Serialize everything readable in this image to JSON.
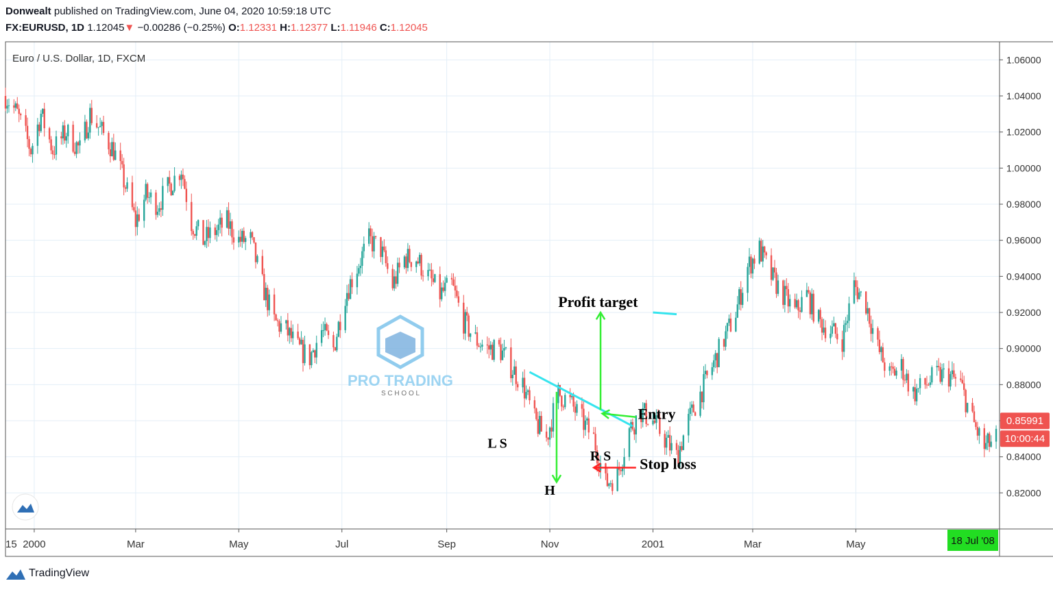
{
  "header": {
    "author": "Donwealt",
    "published_text": " published on TradingView.com, June 04, 2020 10:59:18 UTC",
    "symbol": "FX:EURUSD, 1D",
    "last": "1.12045",
    "change_arrow": "▼",
    "change": "−0.00286 (−0.25%)",
    "o_label": "O:",
    "o_value": "1.12331",
    "h_label": "H:",
    "h_value": "1.12377",
    "l_label": "L:",
    "l_value": "1.11946",
    "c_label": "C:",
    "c_value": "1.12045"
  },
  "footer": {
    "brand": "TradingView"
  },
  "watermark": {
    "line1": "PRO TRADING",
    "line2": "S C H O O L"
  },
  "colors": {
    "up": "#26a69a",
    "down": "#ef5350",
    "neckline": "#35e4ee",
    "green_annotation": "#33ee33",
    "red_annotation": "#ff2222",
    "price_label_bg": "#ef5350",
    "date_label_bg": "#22dd22",
    "grid": "#e3eef7"
  },
  "chart_data": {
    "type": "candlestick",
    "title": "Euro / U.S. Dollar, 1D, FXCM",
    "ylim": [
      0.8,
      1.07
    ],
    "yticks": [
      "1.06000",
      "1.04000",
      "1.02000",
      "1.00000",
      "0.98000",
      "0.96000",
      "0.94000",
      "0.92000",
      "0.90000",
      "0.88000",
      "0.86000",
      "0.84000",
      "0.82000"
    ],
    "ytick_values": [
      1.06,
      1.04,
      1.02,
      1.0,
      0.98,
      0.96,
      0.94,
      0.92,
      0.9,
      0.88,
      0.86,
      0.84,
      0.82
    ],
    "xlim": [
      "1999-12-15",
      "2001-07-25"
    ],
    "xticks": [
      {
        "label": "15",
        "date": "1999-12-15"
      },
      {
        "label": "2000",
        "date": "2000-01-01"
      },
      {
        "label": "Mar",
        "date": "2000-03-01"
      },
      {
        "label": "May",
        "date": "2000-05-01"
      },
      {
        "label": "Jul",
        "date": "2000-07-01"
      },
      {
        "label": "Sep",
        "date": "2000-09-01"
      },
      {
        "label": "Nov",
        "date": "2000-11-01"
      },
      {
        "label": "2001",
        "date": "2001-01-01"
      },
      {
        "label": "Mar",
        "date": "2001-03-01"
      },
      {
        "label": "May",
        "date": "2001-05-01"
      }
    ],
    "close_path": [
      [
        "1999-12-15",
        1.04
      ],
      [
        "1999-12-22",
        1.03
      ],
      [
        "1999-12-30",
        1.01
      ],
      [
        "2000-01-05",
        1.03
      ],
      [
        "2000-01-12",
        1.01
      ],
      [
        "2000-01-20",
        1.02
      ],
      [
        "2000-01-28",
        1.01
      ],
      [
        "2000-02-03",
        1.03
      ],
      [
        "2000-02-10",
        1.02
      ],
      [
        "2000-02-17",
        1.01
      ],
      [
        "2000-02-24",
        0.99
      ],
      [
        "2000-03-01",
        0.97
      ],
      [
        "2000-03-07",
        0.985
      ],
      [
        "2000-03-14",
        0.98
      ],
      [
        "2000-03-21",
        0.99
      ],
      [
        "2000-03-28",
        1.0
      ],
      [
        "2000-04-03",
        0.97
      ],
      [
        "2000-04-10",
        0.96
      ],
      [
        "2000-04-17",
        0.965
      ],
      [
        "2000-04-24",
        0.97
      ],
      [
        "2000-05-01",
        0.96
      ],
      [
        "2000-05-08",
        0.96
      ],
      [
        "2000-05-15",
        0.935
      ],
      [
        "2000-05-22",
        0.915
      ],
      [
        "2000-05-29",
        0.91
      ],
      [
        "2000-06-05",
        0.9
      ],
      [
        "2000-06-12",
        0.895
      ],
      [
        "2000-06-19",
        0.91
      ],
      [
        "2000-06-26",
        0.9
      ],
      [
        "2000-07-03",
        0.93
      ],
      [
        "2000-07-10",
        0.945
      ],
      [
        "2000-07-17",
        0.96
      ],
      [
        "2000-07-24",
        0.955
      ],
      [
        "2000-07-31",
        0.935
      ],
      [
        "2000-08-07",
        0.95
      ],
      [
        "2000-08-14",
        0.95
      ],
      [
        "2000-08-21",
        0.94
      ],
      [
        "2000-08-28",
        0.93
      ],
      [
        "2000-09-04",
        0.935
      ],
      [
        "2000-09-11",
        0.915
      ],
      [
        "2000-09-18",
        0.905
      ],
      [
        "2000-09-25",
        0.9
      ],
      [
        "2000-10-02",
        0.9
      ],
      [
        "2000-10-09",
        0.89
      ],
      [
        "2000-10-16",
        0.88
      ],
      [
        "2000-10-23",
        0.86
      ],
      [
        "2000-10-30",
        0.85
      ],
      [
        "2000-11-06",
        0.875
      ],
      [
        "2000-11-13",
        0.87
      ],
      [
        "2000-11-20",
        0.86
      ],
      [
        "2000-11-27",
        0.85
      ],
      [
        "2000-12-04",
        0.825
      ],
      [
        "2000-12-11",
        0.83
      ],
      [
        "2000-12-18",
        0.855
      ],
      [
        "2000-12-25",
        0.865
      ],
      [
        "2001-01-01",
        0.86
      ],
      [
        "2001-01-08",
        0.85
      ],
      [
        "2001-01-15",
        0.84
      ],
      [
        "2001-01-22",
        0.86
      ],
      [
        "2001-01-29",
        0.875
      ],
      [
        "2001-02-05",
        0.89
      ],
      [
        "2001-02-12",
        0.905
      ],
      [
        "2001-02-19",
        0.92
      ],
      [
        "2001-02-26",
        0.945
      ],
      [
        "2001-03-05",
        0.955
      ],
      [
        "2001-03-12",
        0.94
      ],
      [
        "2001-03-19",
        0.93
      ],
      [
        "2001-03-26",
        0.92
      ],
      [
        "2001-04-02",
        0.93
      ],
      [
        "2001-04-09",
        0.915
      ],
      [
        "2001-04-16",
        0.91
      ],
      [
        "2001-04-23",
        0.905
      ],
      [
        "2001-04-30",
        0.935
      ],
      [
        "2001-05-07",
        0.925
      ],
      [
        "2001-05-14",
        0.9
      ],
      [
        "2001-05-21",
        0.885
      ],
      [
        "2001-05-28",
        0.89
      ],
      [
        "2001-06-04",
        0.875
      ],
      [
        "2001-06-11",
        0.88
      ],
      [
        "2001-06-18",
        0.885
      ],
      [
        "2001-06-25",
        0.885
      ],
      [
        "2001-07-02",
        0.88
      ],
      [
        "2001-07-09",
        0.86
      ],
      [
        "2001-07-16",
        0.845
      ],
      [
        "2001-07-23",
        0.85
      ]
    ],
    "annotations": {
      "pattern_labels": [
        {
          "text": "L S",
          "date": "2000-10-01",
          "price": 0.845
        },
        {
          "text": "H",
          "date": "2000-11-01",
          "price": 0.819
        },
        {
          "text": "R S",
          "date": "2000-12-01",
          "price": 0.838
        }
      ],
      "neckline": {
        "from": {
          "date": "2000-10-20",
          "price": 0.887
        },
        "to": {
          "date": "2000-12-20",
          "price": 0.857
        }
      },
      "profit_target": {
        "text": "Profit target",
        "line_from": {
          "date": "2001-01-01",
          "price": 0.92
        },
        "line_to": {
          "date": "2001-01-15",
          "price": 0.919
        }
      },
      "measure_arrow_down": {
        "from": {
          "date": "2000-11-05",
          "price": 0.876
        },
        "to": {
          "date": "2000-11-05",
          "price": 0.826
        }
      },
      "measure_arrow_up": {
        "from": {
          "date": "2000-12-01",
          "price": 0.866
        },
        "to": {
          "date": "2000-12-01",
          "price": 0.92
        }
      },
      "entry": {
        "text": "Entry",
        "date": "2000-12-02",
        "price": 0.864
      },
      "stop_loss": {
        "text": "Stop loss",
        "date": "2000-11-27",
        "price": 0.834
      }
    },
    "last_price_label": "0.85991",
    "last_price_value": 0.85991,
    "countdown_label": "10:00:44",
    "date_label": "18 Jul '08"
  }
}
